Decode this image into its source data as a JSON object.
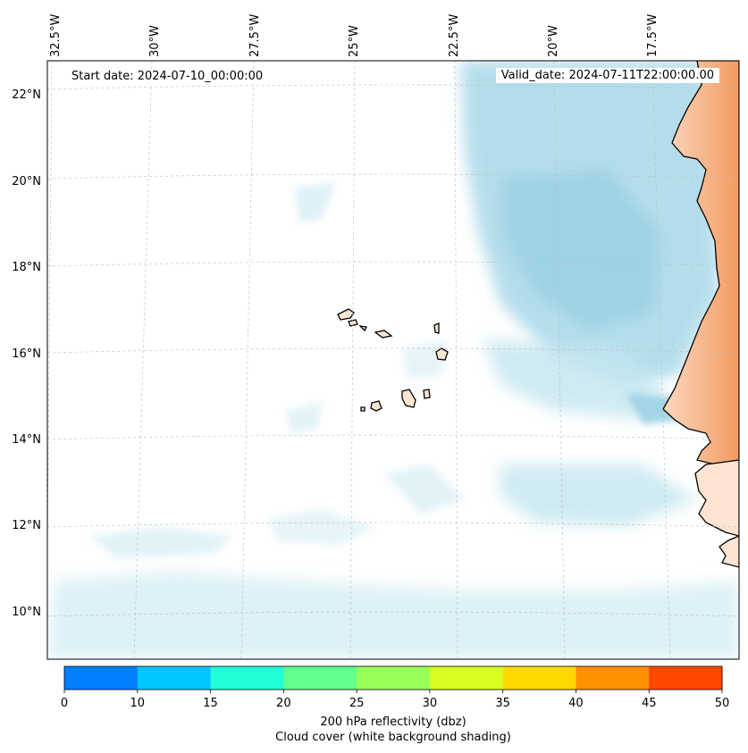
{
  "map": {
    "start_label": "Start date: 2024-07-10_00:00:00",
    "valid_label": "Valid_date: 2024-07-11T22:00:00.00",
    "lon_labels": [
      "32.5°W",
      "30°W",
      "27.5°W",
      "25°W",
      "22.5°W",
      "20°W",
      "17.5°W"
    ],
    "lat_labels": [
      "22°N",
      "20°N",
      "18°N",
      "16°N",
      "14°N",
      "12°N",
      "10°N"
    ],
    "land_color": "#f4a878",
    "cloud_color": "#9fd4e6"
  },
  "colorbar": {
    "ticks": [
      "0",
      "10",
      "15",
      "20",
      "25",
      "30",
      "35",
      "40",
      "45",
      "50"
    ],
    "colors": [
      "#0080ff",
      "#00c8ff",
      "#20ffd8",
      "#60ff90",
      "#98ff58",
      "#d8ff20",
      "#ffd800",
      "#ff9000",
      "#ff4800"
    ],
    "label_line1": "200 hPa reflectivity (dbz)",
    "label_line2": "Cloud cover (white background shading)"
  }
}
